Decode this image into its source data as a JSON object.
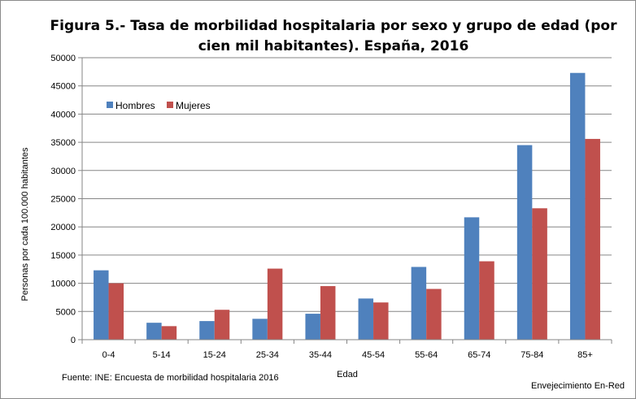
{
  "chart_data": {
    "type": "bar",
    "title": "Figura 5.- Tasa de morbilidad hospitalaria por sexo y grupo de edad (por cien mil habitantes). España, 2016",
    "xlabel": "Edad",
    "ylabel": "Personas por cada 100.000 habitantes",
    "categories": [
      "0-4",
      "5-14",
      "15-24",
      "25-34",
      "35-44",
      "45-54",
      "55-64",
      "65-74",
      "75-84",
      "85+"
    ],
    "series": [
      {
        "name": "Hombres",
        "color": "#4f81bd",
        "values": [
          12300,
          3000,
          3300,
          3700,
          4600,
          7300,
          12900,
          21700,
          34500,
          47300
        ]
      },
      {
        "name": "Mujeres",
        "color": "#c0504d",
        "values": [
          10000,
          2400,
          5300,
          12600,
          9500,
          6600,
          9000,
          13900,
          23300,
          35600
        ]
      }
    ],
    "ylim": [
      0,
      50000
    ],
    "yticks": [
      "0",
      "5000",
      "10000",
      "15000",
      "20000",
      "25000",
      "30000",
      "35000",
      "40000",
      "45000",
      "50000"
    ],
    "grid": true,
    "legend_position": "top-left"
  },
  "footer": {
    "source": "Fuente: INE: Encuesta de morbilidad hospitalaria 2016",
    "credit": "Envejecimiento En-Red"
  }
}
